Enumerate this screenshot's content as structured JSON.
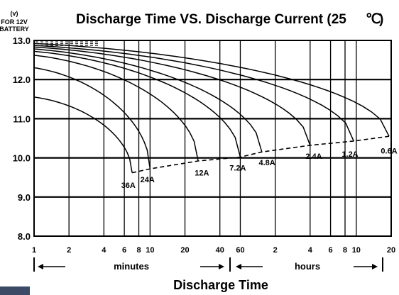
{
  "chart_data": {
    "type": "line",
    "title": "Discharge Time VS. Discharge Current (25",
    "title_unit": "℃",
    "title_close": ")",
    "ylabel_unit": "(v)",
    "ylabel_lines": [
      "FOR 12V",
      "BATTERY"
    ],
    "y_ticks": [
      "13.0",
      "12.0",
      "11.0",
      "10.0",
      "9.0",
      "8.0"
    ],
    "ylim": [
      8.0,
      13.0
    ],
    "x_scale": "log (minutes)",
    "xlim": [
      1,
      1200
    ],
    "x_ticks": [
      {
        "label": "1",
        "minutes": 1
      },
      {
        "label": "2",
        "minutes": 2
      },
      {
        "label": "4",
        "minutes": 4
      },
      {
        "label": "6",
        "minutes": 6
      },
      {
        "label": "8",
        "minutes": 8
      },
      {
        "label": "10",
        "minutes": 10
      },
      {
        "label": "20",
        "minutes": 20
      },
      {
        "label": "40",
        "minutes": 40
      },
      {
        "label": "60",
        "minutes": 60
      },
      {
        "label": "2",
        "minutes": 120
      },
      {
        "label": "4",
        "minutes": 240
      },
      {
        "label": "6",
        "minutes": 360
      },
      {
        "label": "8",
        "minutes": 480
      },
      {
        "label": "10",
        "minutes": 600
      },
      {
        "label": "20",
        "minutes": 1200
      }
    ],
    "unit_labels": {
      "minutes": "minutes",
      "hours": "hours"
    },
    "xlabel": "Discharge Time",
    "grid": true,
    "series": [
      {
        "name": "36A",
        "start_v": 11.55,
        "end_minutes": 7.0,
        "end_v": 9.62,
        "label_minutes": 6.5,
        "label_v": 9.3
      },
      {
        "name": "24A",
        "start_v": 12.3,
        "end_minutes": 10.0,
        "end_v": 9.72,
        "label_minutes": 9.5,
        "label_v": 9.45
      },
      {
        "name": "12A",
        "start_v": 12.62,
        "end_minutes": 26,
        "end_v": 9.92,
        "label_minutes": 28,
        "label_v": 9.62
      },
      {
        "name": "7.2A",
        "start_v": 12.72,
        "end_minutes": 60,
        "end_v": 10.02,
        "label_minutes": 57,
        "label_v": 9.75
      },
      {
        "name": "4.8A",
        "start_v": 12.78,
        "end_minutes": 92,
        "end_v": 10.15,
        "label_minutes": 102,
        "label_v": 9.88
      },
      {
        "name": "2.4A",
        "start_v": 12.83,
        "end_minutes": 240,
        "end_v": 10.32,
        "label_minutes": 258,
        "label_v": 10.05
      },
      {
        "name": "1.2A",
        "start_v": 12.87,
        "end_minutes": 570,
        "end_v": 10.43,
        "label_minutes": 530,
        "label_v": 10.1
      },
      {
        "name": "0.6A",
        "start_v": 12.92,
        "end_minutes": 1150,
        "end_v": 10.55,
        "label_minutes": 1150,
        "label_v": 10.18
      }
    ]
  }
}
